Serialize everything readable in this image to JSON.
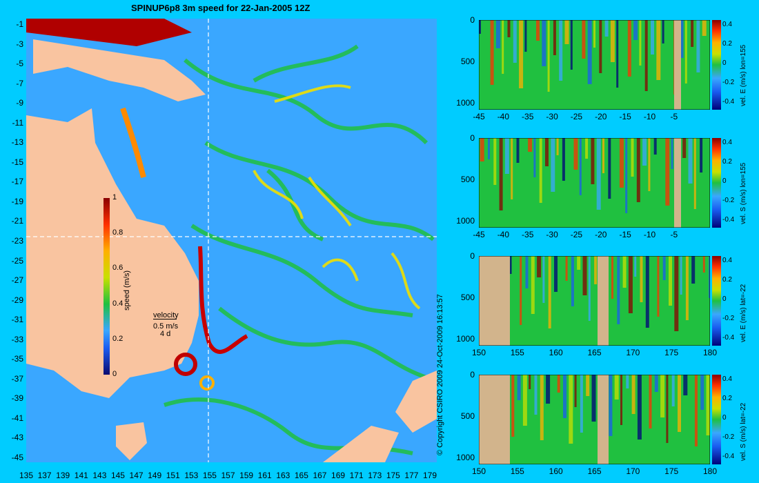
{
  "title": "SPINUP6p8 3m speed for 22-Jan-2005 12Z",
  "map": {
    "lat_labels": [
      "-1",
      "-3",
      "-5",
      "-7",
      "-9",
      "-11",
      "-13",
      "-15",
      "-17",
      "-19",
      "-21",
      "-23",
      "-25",
      "-27",
      "-29",
      "-31",
      "-33",
      "-35",
      "-37",
      "-39",
      "-41",
      "-43",
      "-45"
    ],
    "lon_labels": [
      "135",
      "137",
      "139",
      "141",
      "143",
      "145",
      "147",
      "149",
      "151",
      "153",
      "155",
      "157",
      "159",
      "161",
      "163",
      "165",
      "167",
      "169",
      "171",
      "173",
      "175",
      "177",
      "179"
    ],
    "colorbar": {
      "label": "speed (m/s)",
      "ticks": [
        "1",
        "0.8",
        "0.6",
        "0.4",
        "0.2",
        "0"
      ]
    },
    "velocity_legend": {
      "title": "velocity",
      "scale": "0.5 m/s",
      "time": "4 d"
    },
    "colors": {
      "land": "#f9c4a0",
      "ocean_low": "#3aa7ff",
      "ocean_mid": "#20c040",
      "ocean_high": "#c00000"
    }
  },
  "copyright": "© Copyright CSIRO 2009   24-Oct-2009 16:13:57",
  "panels": [
    {
      "title": "vel. E (m/s) lon=155",
      "x_ticks": [
        "-45",
        "-40",
        "-35",
        "-30",
        "-25",
        "-20",
        "-15",
        "-10",
        "-5"
      ],
      "y_ticks": [
        "0",
        "500",
        "1000"
      ],
      "cbar_ticks": [
        "0.4",
        "0.2",
        "0",
        "-0.2",
        "-0.4"
      ]
    },
    {
      "title": "vel. S (m/s) lon=155",
      "x_ticks": [
        "-45",
        "-40",
        "-35",
        "-30",
        "-25",
        "-20",
        "-15",
        "-10",
        "-5"
      ],
      "y_ticks": [
        "0",
        "500",
        "1000"
      ],
      "cbar_ticks": [
        "0.4",
        "0.2",
        "0",
        "-0.2",
        "-0.4"
      ]
    },
    {
      "title": "vel. E (m/s) lat=-22",
      "x_ticks": [
        "150",
        "155",
        "160",
        "165",
        "170",
        "175",
        "180"
      ],
      "y_ticks": [
        "0",
        "500",
        "1000"
      ],
      "cbar_ticks": [
        "0.4",
        "0.2",
        "0",
        "-0.2",
        "-0.4"
      ]
    },
    {
      "title": "vel. S (m/s) lat=-22",
      "x_ticks": [
        "150",
        "155",
        "160",
        "165",
        "170",
        "175",
        "180"
      ],
      "y_ticks": [
        "0",
        "500",
        "1000"
      ],
      "cbar_ticks": [
        "0.4",
        "0.2",
        "0",
        "-0.2",
        "-0.4"
      ]
    }
  ]
}
